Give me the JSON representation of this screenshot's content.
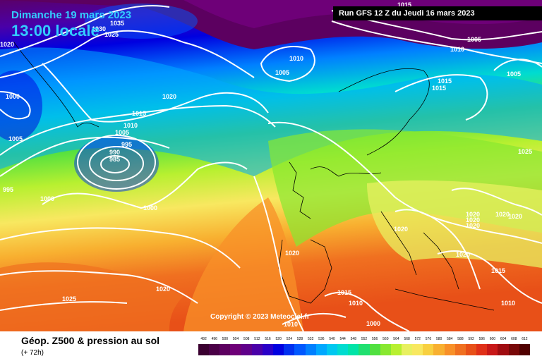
{
  "header": {
    "date": "Dimanche 19 mars 2023",
    "time": "13:00 locale",
    "run": "Run GFS 12 Z du Jeudi 16 mars 2023"
  },
  "copyright": "Copyright © 2023 Meteociel.fr",
  "footer": {
    "title": "Géop. Z500 & pression au sol",
    "subtitle": "(+ 72h)"
  },
  "legend": {
    "values": [
      "492",
      "496",
      "500",
      "504",
      "508",
      "512",
      "516",
      "520",
      "524",
      "528",
      "532",
      "536",
      "540",
      "544",
      "548",
      "552",
      "556",
      "560",
      "564",
      "568",
      "572",
      "576",
      "580",
      "584",
      "588",
      "592",
      "596",
      "600",
      "604",
      "608",
      "612"
    ],
    "colors": [
      "#3a0030",
      "#4a0046",
      "#5c0060",
      "#6e0078",
      "#60008a",
      "#4a00a8",
      "#2a00c8",
      "#0000e0",
      "#0030f0",
      "#0058ff",
      "#0080ff",
      "#00a8ff",
      "#00c8f0",
      "#00dcd0",
      "#00e4a8",
      "#20e070",
      "#50e040",
      "#88e830",
      "#b8f030",
      "#e8f060",
      "#f8e860",
      "#f8d040",
      "#f8b030",
      "#f89028",
      "#f07020",
      "#e85018",
      "#e03018",
      "#c81818",
      "#a00c10",
      "#780808",
      "#500000"
    ]
  },
  "pressure_labels": [
    {
      "text": "1035"
    },
    {
      "text": "1030"
    },
    {
      "text": "1025"
    },
    {
      "text": "1020"
    },
    {
      "text": "1000"
    },
    {
      "text": "1005"
    },
    {
      "text": "995"
    },
    {
      "text": "1000"
    },
    {
      "text": "1020"
    },
    {
      "text": "1015"
    },
    {
      "text": "1010"
    },
    {
      "text": "1005"
    },
    {
      "text": "995"
    },
    {
      "text": "990"
    },
    {
      "text": "985"
    },
    {
      "text": "1000"
    },
    {
      "text": "1010"
    },
    {
      "text": "1005"
    },
    {
      "text": "1015"
    },
    {
      "text": "1005"
    },
    {
      "text": "1010"
    },
    {
      "text": "1015"
    },
    {
      "text": "1015"
    },
    {
      "text": "1005"
    },
    {
      "text": "1025"
    },
    {
      "text": "1020"
    },
    {
      "text": "1020"
    },
    {
      "text": "1020"
    },
    {
      "text": "1020"
    },
    {
      "text": "1020"
    },
    {
      "text": "1020"
    },
    {
      "text": "1020"
    },
    {
      "text": "1015"
    },
    {
      "text": "1020"
    },
    {
      "text": "1025"
    },
    {
      "text": "1015"
    },
    {
      "text": "1010"
    },
    {
      "text": "1000"
    },
    {
      "text": "1010"
    },
    {
      "text": "1010"
    },
    {
      "text": "1020"
    }
  ]
}
